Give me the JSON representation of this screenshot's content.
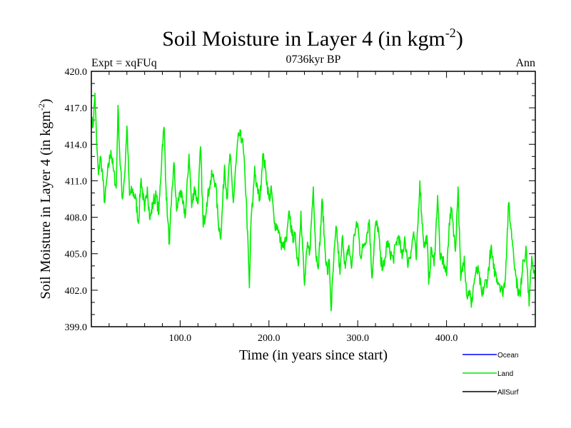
{
  "chart_data": {
    "type": "line",
    "title_main": "Soil Moisture in Layer 4 (in kgm",
    "title_sup": "-2",
    "title_close": ")",
    "subtitle": "0736kyr BP",
    "left_label": "Expt = xqFUq",
    "right_label": "Ann",
    "xlabel": "Time (in years since start)",
    "ylabel_main": "Soil Moisture in Layer 4 (in kgm",
    "ylabel_sup": "-2",
    "ylabel_close": ")",
    "xlim": [
      0,
      500
    ],
    "ylim": [
      399,
      420
    ],
    "x_ticks": [
      100,
      200,
      300,
      400
    ],
    "x_tick_labels": [
      "100.0",
      "200.0",
      "300.0",
      "400.0"
    ],
    "y_ticks": [
      399,
      402,
      405,
      408,
      411,
      414,
      417,
      420
    ],
    "y_tick_labels": [
      "399.0",
      "402.0",
      "405.0",
      "408.0",
      "411.0",
      "414.0",
      "417.0",
      "420.0"
    ],
    "legend": [
      {
        "name": "Ocean",
        "color": "#0000ff"
      },
      {
        "name": "Land",
        "color": "#00ee00"
      },
      {
        "name": "AllSurf",
        "color": "#000000"
      }
    ],
    "series": [
      {
        "name": "Land",
        "color": "#00ee00",
        "x": [
          0,
          2,
          4,
          6,
          8,
          10,
          12,
          15,
          18,
          22,
          25,
          28,
          30,
          32,
          35,
          38,
          40,
          43,
          46,
          50,
          53,
          56,
          60,
          63,
          66,
          70,
          73,
          76,
          80,
          82,
          84,
          86,
          88,
          90,
          93,
          96,
          100,
          103,
          106,
          110,
          113,
          116,
          120,
          123,
          126,
          130,
          133,
          136,
          140,
          143,
          146,
          150,
          153,
          156,
          160,
          163,
          166,
          170,
          173,
          175,
          178,
          180,
          182,
          184,
          186,
          190,
          193,
          196,
          200,
          203,
          206,
          210,
          213,
          216,
          220,
          223,
          226,
          230,
          233,
          236,
          240,
          243,
          246,
          250,
          253,
          256,
          260,
          263,
          266,
          268,
          270,
          273,
          276,
          280,
          283,
          286,
          290,
          293,
          296,
          300,
          303,
          306,
          310,
          313,
          316,
          320,
          323,
          326,
          330,
          333,
          336,
          340,
          343,
          346,
          350,
          353,
          356,
          360,
          363,
          366,
          370,
          372,
          375,
          378,
          380,
          383,
          386,
          390,
          393,
          396,
          400,
          403,
          406,
          410,
          413,
          416,
          420,
          423,
          426,
          428,
          430,
          433,
          436,
          440,
          443,
          446,
          450,
          453,
          456,
          460,
          463,
          466,
          470,
          472,
          475,
          478,
          480,
          483,
          486,
          490,
          493,
          496,
          500
        ],
        "y": [
          416,
          415.5,
          418.2,
          414,
          411.5,
          413,
          412,
          409.2,
          411.5,
          413.5,
          411.8,
          410.4,
          417.2,
          413,
          409.5,
          412,
          415.5,
          409.8,
          410.2,
          409.5,
          407.5,
          411.2,
          408.5,
          410.5,
          407.8,
          409.4,
          409.8,
          408.3,
          414,
          415.4,
          410.5,
          407.8,
          405.8,
          409,
          412.5,
          408.5,
          410.2,
          409.1,
          408.2,
          413.2,
          408.8,
          410.5,
          409.1,
          413.8,
          407.2,
          409.2,
          410.5,
          411.5,
          410.8,
          407.5,
          406.5,
          412.3,
          409.5,
          413.2,
          409.2,
          412.5,
          414.8,
          414.5,
          411.5,
          408.5,
          402.2,
          408,
          409.5,
          412.2,
          410.5,
          409.5,
          413.2,
          412,
          409.5,
          410.2,
          407.5,
          407.2,
          406,
          405.5,
          406.2,
          408.5,
          406.5,
          406.2,
          404,
          408.5,
          402.4,
          405.5,
          405.2,
          410.5,
          404.8,
          404.2,
          409.5,
          405.5,
          403.3,
          404.5,
          400.3,
          404.5,
          407.2,
          403.3,
          406.5,
          403.8,
          405.7,
          403.8,
          406.6,
          407.5,
          404.8,
          405.5,
          406.5,
          407.8,
          403,
          407.4,
          407.2,
          404.2,
          404,
          406,
          405.2,
          404.5,
          405.8,
          406.5,
          404.6,
          406.4,
          404.2,
          405.2,
          406.8,
          404.5,
          411,
          408.2,
          405.5,
          406.5,
          402.5,
          405.5,
          404,
          409.8,
          404.5,
          404.5,
          403.2,
          407.5,
          408.7,
          405.2,
          410.5,
          402.8,
          404.8,
          401.5,
          402,
          400.6,
          402.2,
          403.5,
          403.5,
          401.5,
          402.5,
          402.8,
          405.5,
          403.8,
          403.2,
          402.5,
          401.8,
          402.8,
          409.2,
          407.5,
          405.5,
          403.2,
          402.2,
          401.5,
          404.5,
          405.2,
          400.7,
          404.8,
          402.8
        ]
      }
    ]
  }
}
